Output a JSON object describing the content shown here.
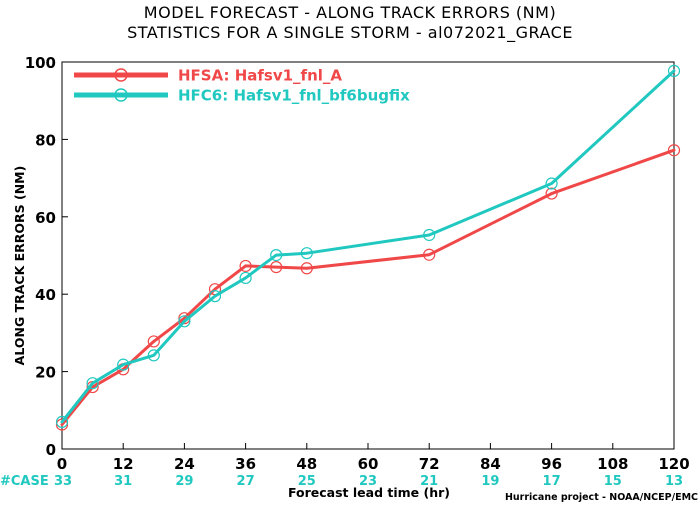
{
  "chart_data": {
    "type": "line",
    "title_lines": [
      "MODEL FORECAST - ALONG TRACK ERRORS (NM)",
      "STATISTICS FOR A SINGLE STORM - al072021_GRACE"
    ],
    "xlabel": "Forecast lead time (hr)",
    "ylabel": "ALONG TRACK ERRORS (NM)",
    "xlim": [
      0,
      120
    ],
    "ylim": [
      0,
      100
    ],
    "x_ticks": [
      0,
      12,
      24,
      36,
      48,
      60,
      72,
      84,
      96,
      108,
      120
    ],
    "y_ticks": [
      0,
      20,
      40,
      60,
      80,
      100
    ],
    "grid": false,
    "legend_position": "top-left",
    "series": [
      {
        "name": "HFSA: Hafsv1_fnl_A",
        "color": "#f04848",
        "x": [
          0,
          6,
          12,
          18,
          24,
          30,
          36,
          42,
          48,
          72,
          96,
          120
        ],
        "y": [
          6.3,
          16.0,
          20.6,
          27.8,
          33.8,
          41.3,
          47.3,
          47.0,
          46.7,
          50.2,
          66.0,
          77.2
        ]
      },
      {
        "name": "HFC6: Hafsv1_fnl_bf6bugfix",
        "color": "#20c8c0",
        "x": [
          0,
          6,
          12,
          18,
          24,
          30,
          36,
          42,
          48,
          72,
          96,
          120
        ],
        "y": [
          7.0,
          17.0,
          21.8,
          24.2,
          33.0,
          39.5,
          44.2,
          50.1,
          50.6,
          55.3,
          68.6,
          97.7
        ]
      }
    ],
    "case_counts": {
      "label": "#CASE",
      "values": [
        "33",
        "31",
        "29",
        "27",
        "25",
        "23",
        "21",
        "19",
        "17",
        "15",
        "13"
      ]
    },
    "credit": "Hurricane project - NOAA/NCEP/EMC"
  }
}
